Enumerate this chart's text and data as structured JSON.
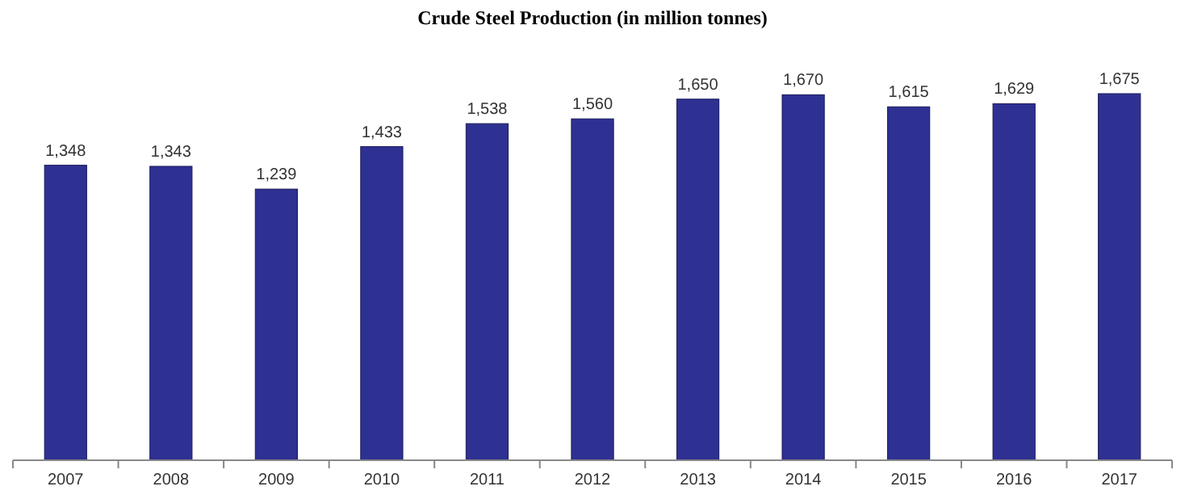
{
  "chart_data": {
    "type": "bar",
    "title": "Crude Steel Production (in million tonnes)",
    "categories": [
      "2007",
      "2008",
      "2009",
      "2010",
      "2011",
      "2012",
      "2013",
      "2014",
      "2015",
      "2016",
      "2017"
    ],
    "values": [
      1348,
      1343,
      1239,
      1433,
      1538,
      1560,
      1650,
      1670,
      1615,
      1629,
      1675
    ],
    "value_labels": [
      "1,348",
      "1,343",
      "1,239",
      "1,433",
      "1,538",
      "1,560",
      "1,650",
      "1,670",
      "1,615",
      "1,629",
      "1,675"
    ],
    "color": "#2e3192"
  }
}
